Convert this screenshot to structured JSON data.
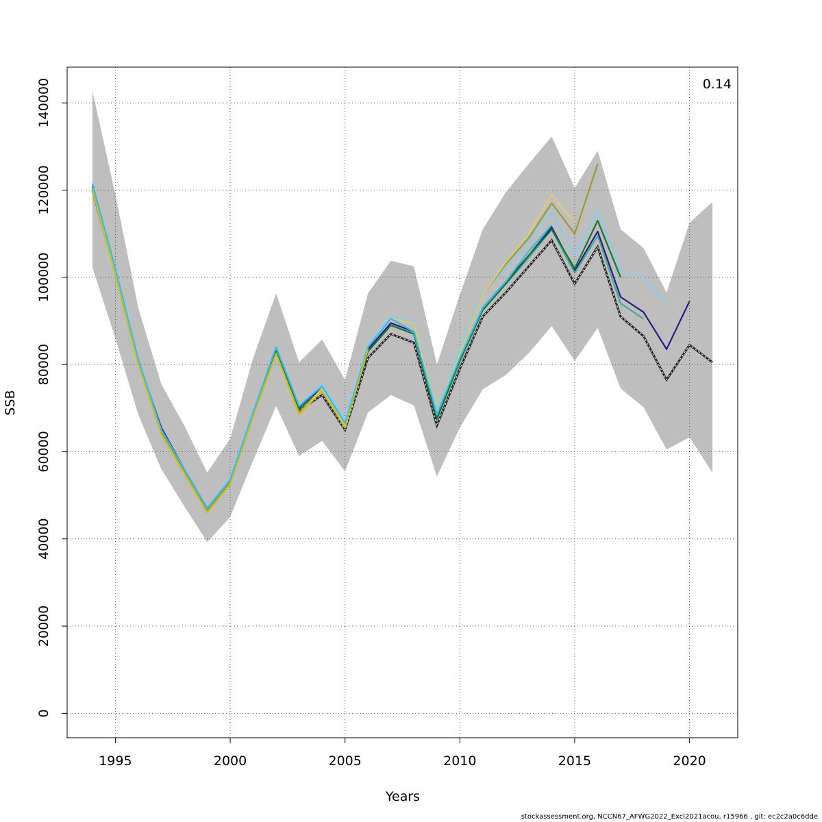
{
  "chart_data": {
    "type": "line",
    "xlabel": "Years",
    "ylabel": "SSB",
    "annotation": "0.14",
    "xlim": [
      1992.9,
      2022.1
    ],
    "ylim": [
      -5600,
      148200
    ],
    "xticks": [
      1995,
      2000,
      2005,
      2010,
      2015,
      2020
    ],
    "yticks": [
      0,
      20000,
      40000,
      60000,
      80000,
      100000,
      120000,
      140000
    ],
    "grid": true,
    "confidence_band": {
      "x": [
        1994,
        1995,
        1996,
        1997,
        1998,
        1999,
        2000,
        2001,
        2002,
        2003,
        2004,
        2005,
        2006,
        2007,
        2008,
        2009,
        2010,
        2011,
        2012,
        2013,
        2014,
        2015,
        2016,
        2017,
        2018,
        2019,
        2020,
        2021
      ],
      "upper": [
        142800,
        119000,
        93000,
        75500,
        66000,
        55200,
        63000,
        81500,
        96300,
        80500,
        85700,
        76500,
        96300,
        103800,
        102500,
        80000,
        96000,
        111000,
        119500,
        126000,
        132300,
        120500,
        129000,
        111000,
        106700,
        96500,
        112500,
        117300
      ],
      "lower": [
        102300,
        86000,
        68500,
        56000,
        47500,
        39300,
        45000,
        58000,
        70500,
        59000,
        62500,
        55500,
        69000,
        73000,
        70600,
        54300,
        65500,
        74300,
        77600,
        82600,
        88800,
        80800,
        88400,
        74500,
        70200,
        60500,
        63300,
        55200
      ],
      "color": "#bebebe"
    },
    "series": [
      {
        "color": "#222222",
        "dashed": true,
        "x": [
          1994,
          1995,
          1996,
          1997,
          1998,
          1999,
          2000,
          2001,
          2002,
          2003,
          2004,
          2005,
          2006,
          2007,
          2008,
          2009,
          2010,
          2011,
          2012,
          2013,
          2014,
          2015,
          2016,
          2017,
          2018,
          2019,
          2020,
          2021
        ],
        "values": [
          120000,
          101000,
          80500,
          64500,
          55500,
          46500,
          53000,
          68500,
          83000,
          69500,
          73000,
          65000,
          81500,
          87000,
          85000,
          66000,
          79000,
          91000,
          96500,
          102500,
          108500,
          98500,
          107000,
          91000,
          86500,
          76500,
          84500,
          80500
        ]
      },
      {
        "color": "#2b1a80",
        "x": [
          1994,
          1995,
          1996,
          1997,
          1998,
          1999,
          2000,
          2001,
          2002,
          2003,
          2004,
          2005,
          2006,
          2007,
          2008,
          2009,
          2010,
          2011,
          2012,
          2013,
          2014,
          2015,
          2016,
          2017,
          2018,
          2019,
          2020
        ],
        "values": [
          121000,
          101500,
          81000,
          65500,
          56000,
          47000,
          53500,
          69000,
          83500,
          70500,
          74500,
          66500,
          83500,
          89500,
          87500,
          68000,
          81000,
          93000,
          99000,
          105000,
          111500,
          101500,
          110500,
          95500,
          92000,
          83500,
          94500
        ]
      },
      {
        "color": "#44aa99",
        "x": [
          1994,
          1995,
          1996,
          1997,
          1998,
          1999,
          2000,
          2001,
          2002,
          2003,
          2004,
          2005,
          2006,
          2007,
          2008,
          2009,
          2010,
          2011,
          2012,
          2013,
          2014,
          2015,
          2016,
          2017,
          2018
        ],
        "values": [
          121000,
          101500,
          81000,
          65000,
          56000,
          47000,
          53500,
          69000,
          83500,
          70000,
          74000,
          66500,
          83000,
          89000,
          87000,
          67500,
          80500,
          92500,
          98500,
          104500,
          111000,
          101000,
          109500,
          94000,
          90500
        ]
      },
      {
        "color": "#88ccee",
        "x": [
          1994,
          1995,
          1996,
          1997,
          1998,
          1999,
          2000,
          2001,
          2002,
          2003,
          2004,
          2005,
          2006,
          2007,
          2008,
          2009,
          2010,
          2011,
          2012,
          2013,
          2014,
          2015,
          2016,
          2017,
          2018,
          2019
        ],
        "values": [
          121500,
          102000,
          81500,
          65000,
          56000,
          47000,
          54000,
          69000,
          84000,
          70500,
          75500,
          67500,
          84500,
          91000,
          90000,
          69000,
          83500,
          96500,
          102000,
          108500,
          115000,
          105000,
          115500,
          101500,
          100000,
          94000
        ]
      },
      {
        "color": "#117733",
        "x": [
          1994,
          1995,
          1996,
          1997,
          1998,
          1999,
          2000,
          2001,
          2002,
          2003,
          2004,
          2005,
          2006,
          2007,
          2008,
          2009,
          2010,
          2011,
          2012,
          2013,
          2014,
          2015,
          2016,
          2017
        ],
        "values": [
          121000,
          101500,
          81000,
          65000,
          55500,
          47000,
          53500,
          68500,
          83000,
          70000,
          74000,
          66500,
          83000,
          89000,
          87000,
          67500,
          81000,
          92500,
          98500,
          105000,
          111000,
          102000,
          113000,
          100000
        ]
      },
      {
        "color": "#999933",
        "x": [
          1994,
          1995,
          1996,
          1997,
          1998,
          1999,
          2000,
          2001,
          2002,
          2003,
          2004,
          2005,
          2006,
          2007,
          2008,
          2009,
          2010,
          2011,
          2012,
          2013,
          2014,
          2015,
          2016
        ],
        "values": [
          120500,
          101000,
          80500,
          64500,
          55500,
          46500,
          53000,
          68500,
          82500,
          69000,
          74500,
          66000,
          84000,
          90500,
          89500,
          68500,
          82500,
          96000,
          103000,
          109000,
          117000,
          110000,
          126000
        ]
      },
      {
        "color": "#ddcc77",
        "x": [
          1994,
          1995,
          1996,
          1997,
          1998,
          1999,
          2000,
          2001,
          2002,
          2003,
          2004,
          2005,
          2006,
          2007,
          2008,
          2009,
          2010,
          2011,
          2012,
          2013,
          2014,
          2015
        ],
        "values": [
          120000,
          101000,
          80000,
          64000,
          55000,
          46000,
          52500,
          68000,
          82500,
          68500,
          74500,
          66000,
          84000,
          90500,
          89500,
          68500,
          82500,
          96000,
          103500,
          110000,
          119000,
          112500
        ]
      },
      {
        "color": "#33bbee",
        "x": [
          1994,
          1995,
          1996,
          1997,
          1998,
          1999,
          2000,
          2001,
          2002,
          2003,
          2004,
          2005,
          2006,
          2007,
          2008,
          2009,
          2010,
          2011,
          2012,
          2013,
          2014
        ],
        "values": [
          121500,
          102000,
          81000,
          65000,
          56000,
          47000,
          53500,
          69000,
          84000,
          70500,
          75000,
          66500,
          84000,
          90500,
          87500,
          68500,
          81500,
          93000,
          99000,
          106000,
          112000
        ]
      },
      {
        "color": "#c9c020",
        "x": [
          1994,
          1995,
          1996,
          1997,
          1998,
          1999,
          2000,
          2001,
          2002,
          2003,
          2004,
          2005,
          2006
        ],
        "values": [
          120000,
          100500,
          80000,
          64000,
          55000,
          46000,
          52500,
          68000,
          82500,
          68500,
          74000,
          65500,
          83500
        ]
      }
    ]
  },
  "footer": "stockassessment.org, NCCN67_AFWG2022_Excl2021acou, r15966 , git: ec2c2a0c6dde"
}
